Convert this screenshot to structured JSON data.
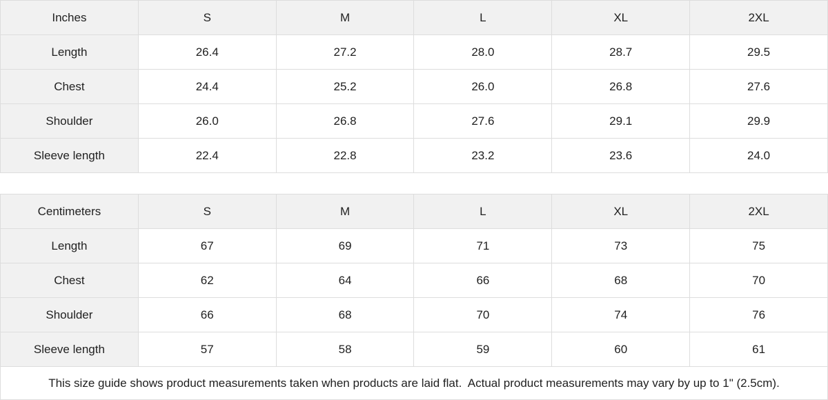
{
  "colors": {
    "background": "#ffffff",
    "header_bg": "#f1f1f1",
    "border": "#dddddd",
    "text": "#212121"
  },
  "chart_data": [
    {
      "type": "table",
      "unit": "Inches",
      "columns": [
        "S",
        "M",
        "L",
        "XL",
        "2XL"
      ],
      "rows": [
        {
          "label": "Length",
          "values": [
            "26.4",
            "27.2",
            "28.0",
            "28.7",
            "29.5"
          ]
        },
        {
          "label": "Chest",
          "values": [
            "24.4",
            "25.2",
            "26.0",
            "26.8",
            "27.6"
          ]
        },
        {
          "label": "Shoulder",
          "values": [
            "26.0",
            "26.8",
            "27.6",
            "29.1",
            "29.9"
          ]
        },
        {
          "label": "Sleeve length",
          "values": [
            "22.4",
            "22.8",
            "23.2",
            "23.6",
            "24.0"
          ]
        }
      ]
    },
    {
      "type": "table",
      "unit": "Centimeters",
      "columns": [
        "S",
        "M",
        "L",
        "XL",
        "2XL"
      ],
      "rows": [
        {
          "label": "Length",
          "values": [
            "67",
            "69",
            "71",
            "73",
            "75"
          ]
        },
        {
          "label": "Chest",
          "values": [
            "62",
            "64",
            "66",
            "68",
            "70"
          ]
        },
        {
          "label": "Shoulder",
          "values": [
            "66",
            "68",
            "70",
            "74",
            "76"
          ]
        },
        {
          "label": "Sleeve length",
          "values": [
            "57",
            "58",
            "59",
            "60",
            "61"
          ]
        }
      ]
    }
  ],
  "footer": {
    "note": "This size guide shows product measurements taken when products are laid flat.  Actual product measurements may vary by up to 1\" (2.5cm)."
  }
}
